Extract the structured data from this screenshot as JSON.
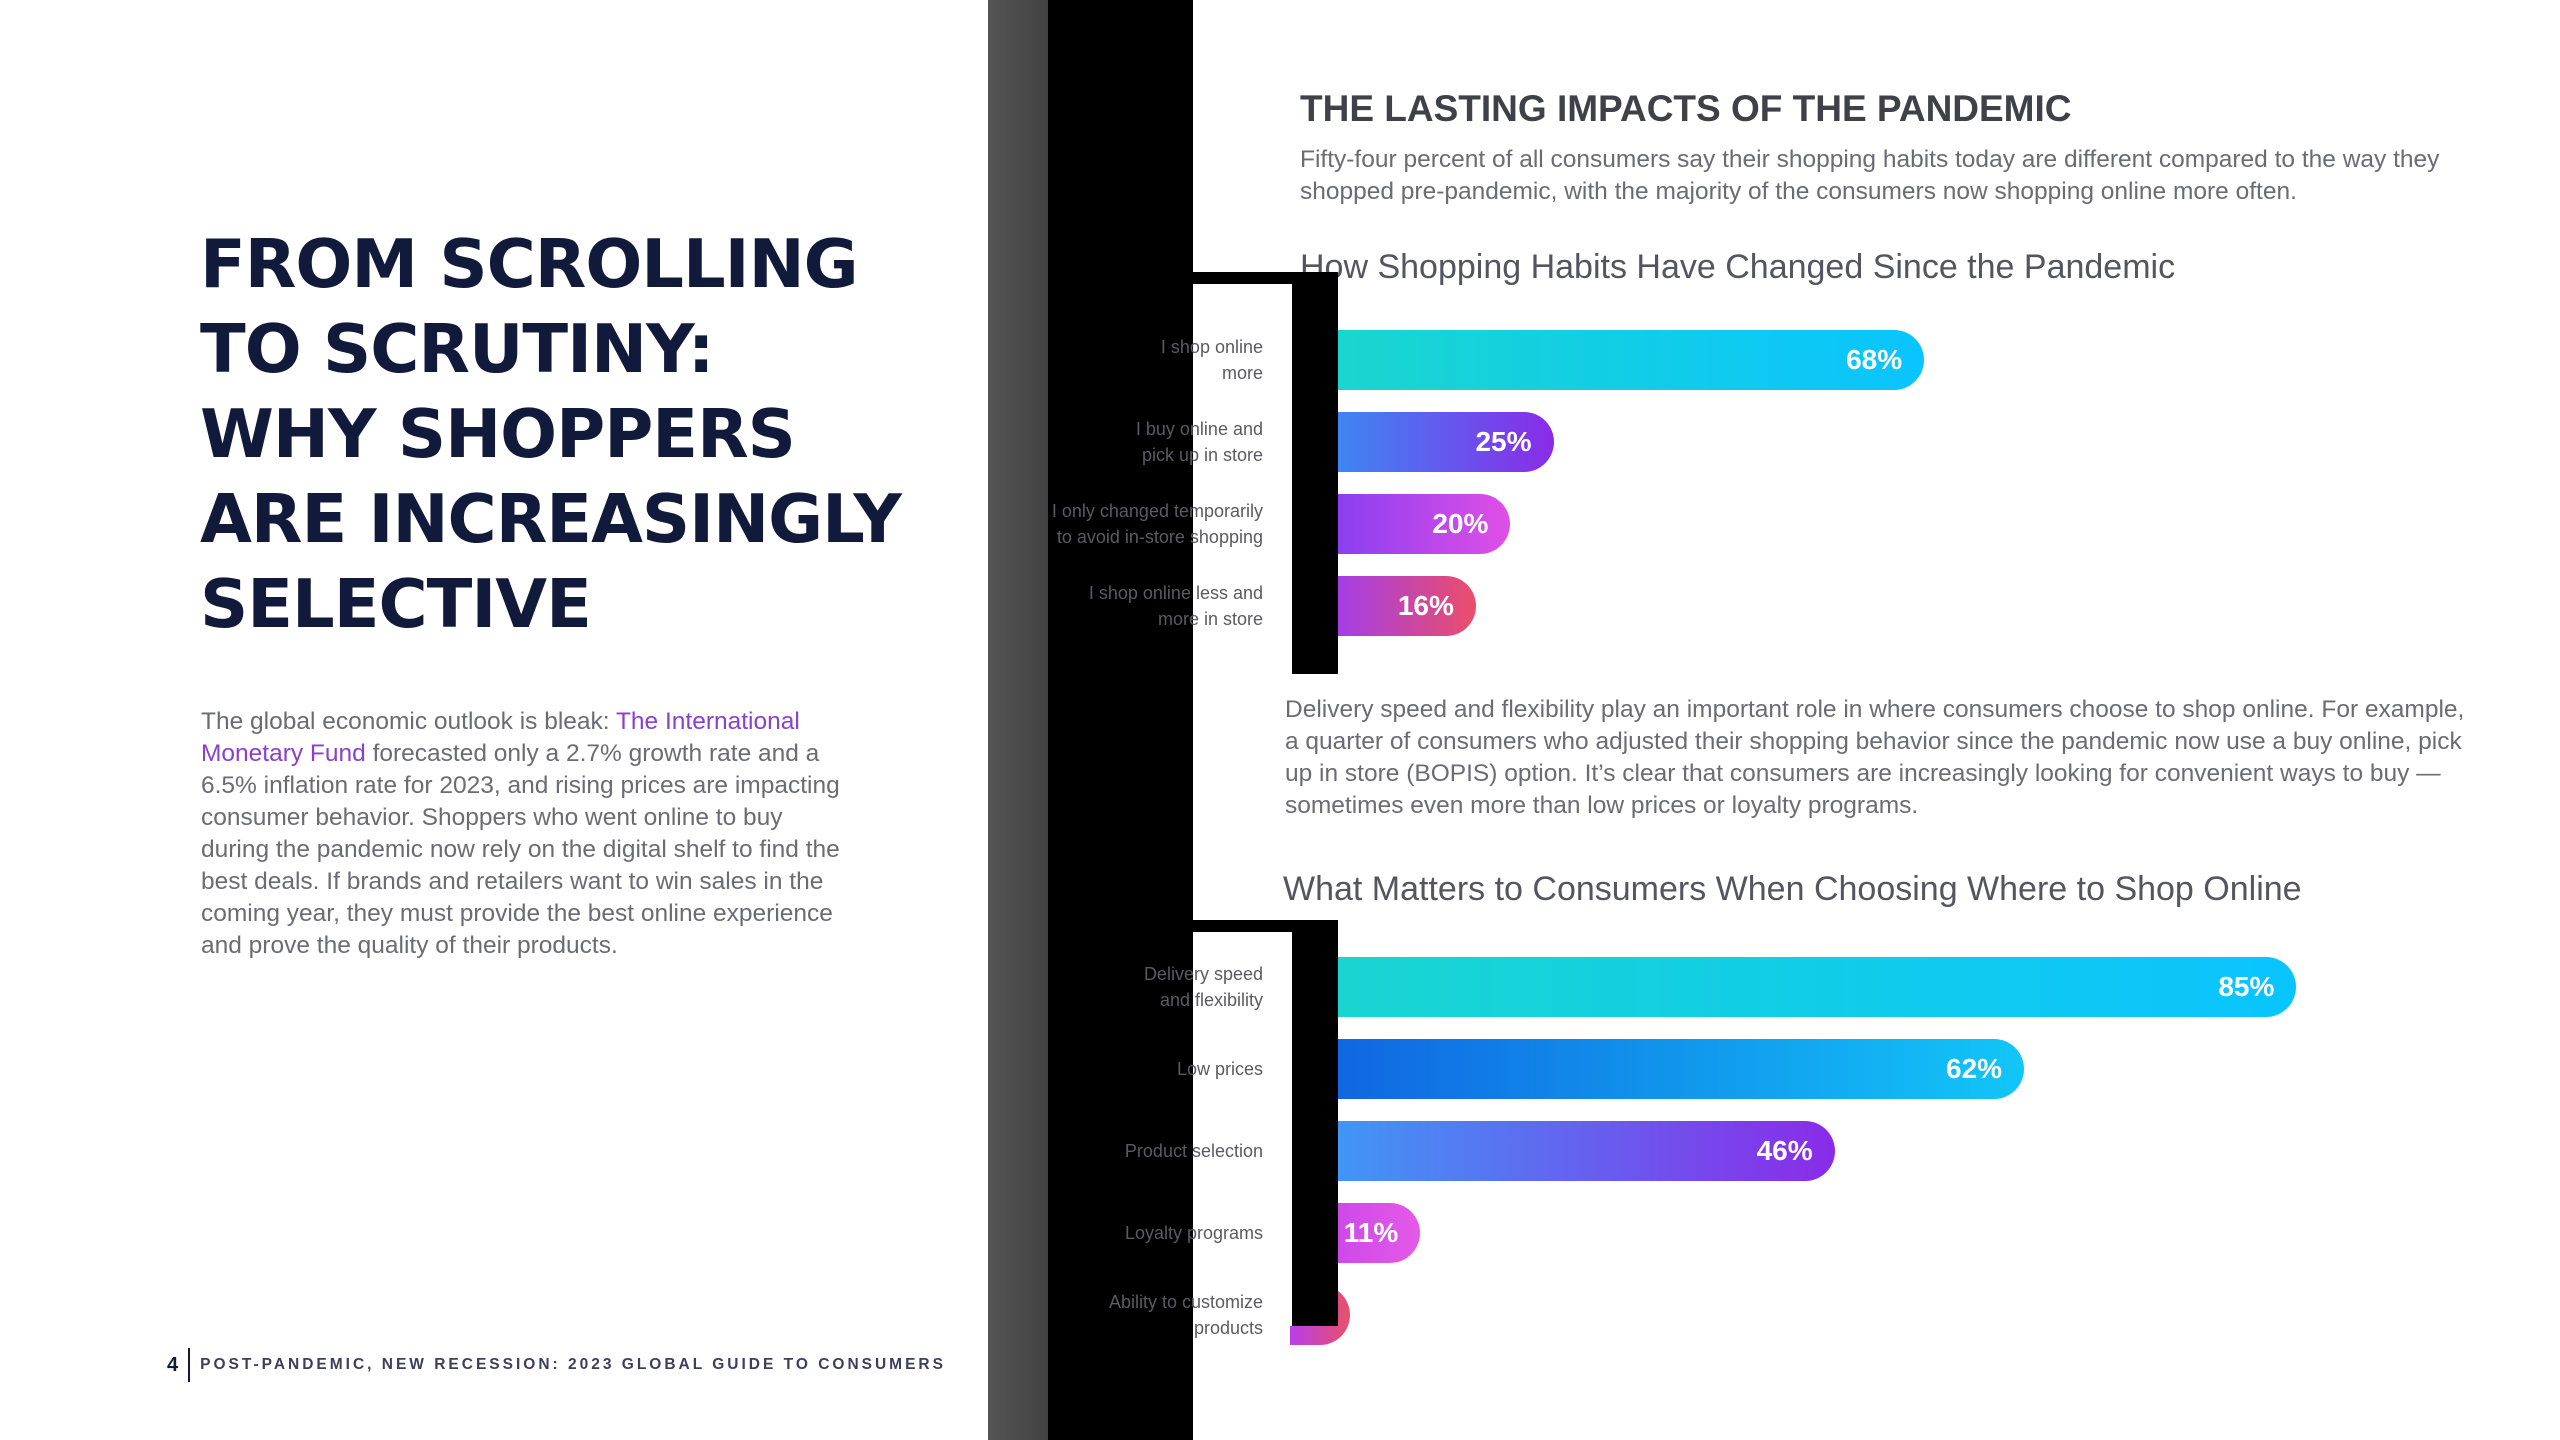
{
  "left": {
    "headline": [
      "FROM SCROLLING",
      "TO SCRUTINY:",
      "WHY SHOPPERS",
      "ARE INCREASINGLY",
      "SELECTIVE"
    ],
    "intro_pre": "The global economic outlook is bleak: ",
    "intro_link": "The International Monetary Fund",
    "intro_post": " forecasted only a 2.7% growth rate and a 6.5% inflation rate for 2023, and rising prices are impacting consumer behavior. Shoppers who went online to buy during the pandemic now rely on the digital shelf to find the best deals. If brands and retailers want to win sales in the coming year, they must provide the best online experience and prove the quality of their products.",
    "page_number": "4",
    "footer_title": "POST-PANDEMIC, NEW RECESSION: 2023 GLOBAL GUIDE TO CONSUMERS"
  },
  "right": {
    "section_title": "THE LASTING IMPACTS OF THE PANDEMIC",
    "section_sub": "Fifty-four percent of all consumers say their shopping habits today are different compared to the way they shopped pre-pandemic, with the majority of the consumers now shopping online more often.",
    "body2": "Delivery speed and flexibility play an important role in where consumers choose to shop online. For example, a quarter of consumers who adjusted their shopping behavior since the pandemic now use a buy online, pick up in store (BOPIS) option. It’s clear that consumers are increasingly looking for convenient ways to buy — sometimes even more than low prices or loyalty programs."
  },
  "colors": {
    "headline": "#121a3c",
    "link": "#8a3fd1",
    "body": "#6b6b75"
  },
  "chart_data": [
    {
      "type": "bar",
      "title": "How Shopping Habits Have Changed Since the Pandemic",
      "categories": [
        "I shop online more",
        "I buy online and pick up in store",
        "I only changed temporarily to avoid in-store shopping",
        "I shop online less and more in store"
      ],
      "category_lines": [
        [
          "I shop online",
          "more"
        ],
        [
          "I buy online and",
          "pick up in store"
        ],
        [
          "I only changed temporarily",
          "to avoid in-store shopping"
        ],
        [
          "I shop online less and",
          "more in store"
        ]
      ],
      "values": [
        68,
        25,
        20,
        16
      ],
      "value_labels": [
        "68%",
        "25%",
        "20%",
        "16%"
      ],
      "xlim": [
        0,
        100
      ],
      "gradients": [
        [
          "#19d6cf",
          "#0ac4ff"
        ],
        [
          "#3e86f3",
          "#8a2be8"
        ],
        [
          "#8b3ff0",
          "#e04fe6"
        ],
        [
          "#a43ee6",
          "#ec4e6a"
        ]
      ]
    },
    {
      "type": "bar",
      "title": "What Matters to Consumers When Choosing Where to Shop Online",
      "categories": [
        "Delivery speed and flexibility",
        "Low prices",
        "Product selection",
        "Loyalty programs",
        "Ability to customize products"
      ],
      "category_lines": [
        [
          "Delivery speed",
          "and flexibility"
        ],
        [
          "Low prices"
        ],
        [
          "Product selection"
        ],
        [
          "Loyalty programs"
        ],
        [
          "Ability to customize",
          "products"
        ]
      ],
      "values": [
        85,
        62,
        46,
        11,
        5
      ],
      "value_labels": [
        "85%",
        "62%",
        "46%",
        "11%",
        ""
      ],
      "xlim": [
        0,
        100
      ],
      "gradients": [
        [
          "#19d6cf",
          "#0ac4ff"
        ],
        [
          "#1060e0",
          "#12c6f8"
        ],
        [
          "#3aa0f7",
          "#8a2be8"
        ],
        [
          "#c13fe8",
          "#e45ae8"
        ],
        [
          "#b93eea",
          "#e8506a"
        ]
      ]
    }
  ]
}
